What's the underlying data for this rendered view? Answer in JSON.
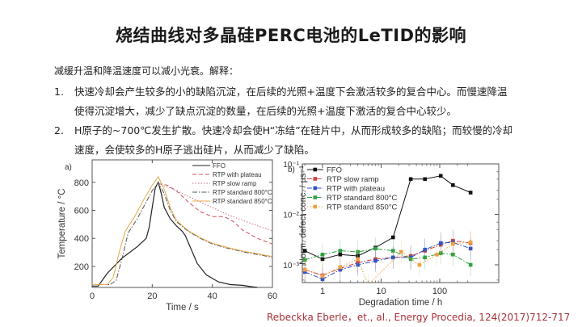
{
  "slide": {
    "title": "烧结曲线对多晶硅PERC电池的LeTID的影响",
    "intro": "减缓升温和降温速度可以减小光衰。解释：",
    "items": [
      {
        "num": "1.",
        "line1": "快速冷却会产生较多的小的缺陷沉淀，在后续的光照+温度下会激活较多的复合中心。而慢速降温",
        "line2": "使得沉淀增大，减少了缺点沉淀的数量，在后续的光照+温度下激活的复合中心较少。"
      },
      {
        "num": "2.",
        "line1": "H原子的~700℃发生扩散。快速冷却会使H“冻结”在硅片中，从而形成较多的缺陷；而较慢的冷却",
        "line2": "速度，会使较多的H原子逃出硅片，从而减少了缺陷。"
      }
    ],
    "citation": "Rebeckka Eberle，et., al., Energy Procedia, 124(2017)712-717"
  },
  "chart_data": [
    {
      "type": "line",
      "panel_label": "a)",
      "title": "",
      "xlabel": "Time / s",
      "ylabel": "Temperature / °C",
      "xlim": [
        0,
        60
      ],
      "ylim": [
        50,
        960
      ],
      "xticks": [
        "0",
        "20",
        "40",
        "60"
      ],
      "yticks": [
        "200",
        "400",
        "600",
        "800"
      ],
      "legend_position": "upper right",
      "series": [
        {
          "name": "FFO",
          "style": "solid",
          "color": "#222222",
          "x": [
            0,
            2,
            5,
            10,
            15,
            18,
            19,
            20,
            21,
            22,
            23,
            24,
            26,
            28,
            30,
            31,
            33,
            35,
            38,
            42,
            46,
            50,
            53,
            55
          ],
          "y": [
            60,
            60,
            150,
            260,
            340,
            400,
            480,
            620,
            760,
            800,
            720,
            620,
            540,
            490,
            450,
            420,
            320,
            220,
            140,
            90,
            70,
            65,
            55,
            50
          ]
        },
        {
          "name": "RTP with plateau",
          "style": "dashed",
          "color": "#d0505a",
          "x": [
            22,
            25,
            28,
            32,
            36,
            40,
            44,
            47,
            50,
            55,
            60
          ],
          "y": [
            790,
            780,
            740,
            660,
            590,
            555,
            555,
            520,
            460,
            400,
            360
          ]
        },
        {
          "name": "RTP slow ramp",
          "style": "dotted",
          "color": "#c07080",
          "x": [
            22,
            26,
            30,
            35,
            40,
            45,
            50,
            55,
            60
          ],
          "y": [
            790,
            760,
            720,
            670,
            620,
            570,
            530,
            490,
            455
          ]
        },
        {
          "name": "RTP standard 800°C",
          "style": "dashdot",
          "color": "#555555",
          "x": [
            0,
            6,
            8,
            10,
            12,
            15,
            18,
            20,
            22,
            24,
            26,
            28,
            32,
            36,
            40,
            45,
            50,
            55,
            60
          ],
          "y": [
            70,
            70,
            100,
            260,
            440,
            540,
            660,
            740,
            795,
            720,
            600,
            520,
            450,
            400,
            360,
            330,
            305,
            285,
            265
          ]
        },
        {
          "name": "RTP standard 850°C",
          "style": "solid-thin",
          "color": "#e8a848",
          "x": [
            0,
            5,
            7,
            9,
            11,
            14,
            17,
            20,
            22,
            24,
            26,
            28,
            32,
            36,
            40,
            45,
            50,
            55,
            60
          ],
          "y": [
            70,
            70,
            120,
            300,
            450,
            550,
            670,
            780,
            840,
            750,
            620,
            530,
            455,
            405,
            365,
            335,
            310,
            290,
            270
          ]
        }
      ]
    },
    {
      "type": "line",
      "panel_label": "b)",
      "title": "",
      "xlabel": "Degradation time / h",
      "ylabel": "Norm. defect conc. / µs⁻¹",
      "xscale": "log",
      "yscale": "log",
      "xlim": [
        0.45,
        350
      ],
      "ylim": [
        0.00045,
        0.1
      ],
      "xticks": [
        "1",
        "10",
        "100"
      ],
      "yticks": [
        "10⁻³",
        "10⁻²",
        "10⁻¹"
      ],
      "legend_position": "upper left",
      "series": [
        {
          "name": "FFO",
          "marker": "square",
          "color": "#111111",
          "style": "solid",
          "x": [
            0.5,
            1,
            2,
            4,
            8,
            16,
            32,
            56,
            104,
            168,
            336
          ],
          "y": [
            0.0019,
            0.0013,
            0.0016,
            0.0015,
            0.0022,
            0.0035,
            0.05,
            0.05,
            0.058,
            0.038,
            0.027
          ]
        },
        {
          "name": "RTP slow ramp",
          "marker": "square",
          "color": "#d04040",
          "style": "dashdot",
          "x": [
            0.5,
            1,
            2,
            4,
            8,
            16,
            32,
            56,
            104,
            168,
            336
          ],
          "y": [
            0.0008,
            0.00062,
            0.00085,
            0.0011,
            0.0013,
            0.0014,
            0.0015,
            0.0019,
            0.0025,
            0.003,
            0.0027
          ]
        },
        {
          "name": "RTP with plateau",
          "marker": "square",
          "color": "#3050c8",
          "style": "dashdot",
          "x": [
            0.5,
            1,
            2,
            4,
            8,
            16,
            32,
            56,
            104,
            168,
            336
          ],
          "y": [
            0.00072,
            0.00052,
            0.0008,
            0.001,
            0.0012,
            0.0014,
            0.0014,
            0.002,
            0.0027,
            0.0028,
            0.0021
          ]
        },
        {
          "name": "RTP standard 800°C",
          "marker": "square",
          "color": "#30a040",
          "style": "dashdot",
          "x": [
            0.5,
            1,
            2,
            4,
            8,
            16,
            32,
            56,
            104,
            168,
            336
          ],
          "y": [
            0.00125,
            0.0016,
            0.0019,
            0.0018,
            0.0021,
            0.0019,
            0.0013,
            0.0014,
            0.0017,
            0.0016,
            0.001
          ]
        },
        {
          "name": "RTP standard 850°C",
          "marker": "square",
          "color": "#f0a040",
          "style": "dotted",
          "x": [
            0.5,
            1,
            2,
            4,
            6,
            22,
            45,
            90,
            168,
            336
          ],
          "y": [
            0.0008,
            0.0006,
            0.0009,
            0.0013,
            0.0004,
            0.0018,
            0.001,
            0.0016,
            0.0026,
            0.0028
          ]
        }
      ]
    }
  ]
}
